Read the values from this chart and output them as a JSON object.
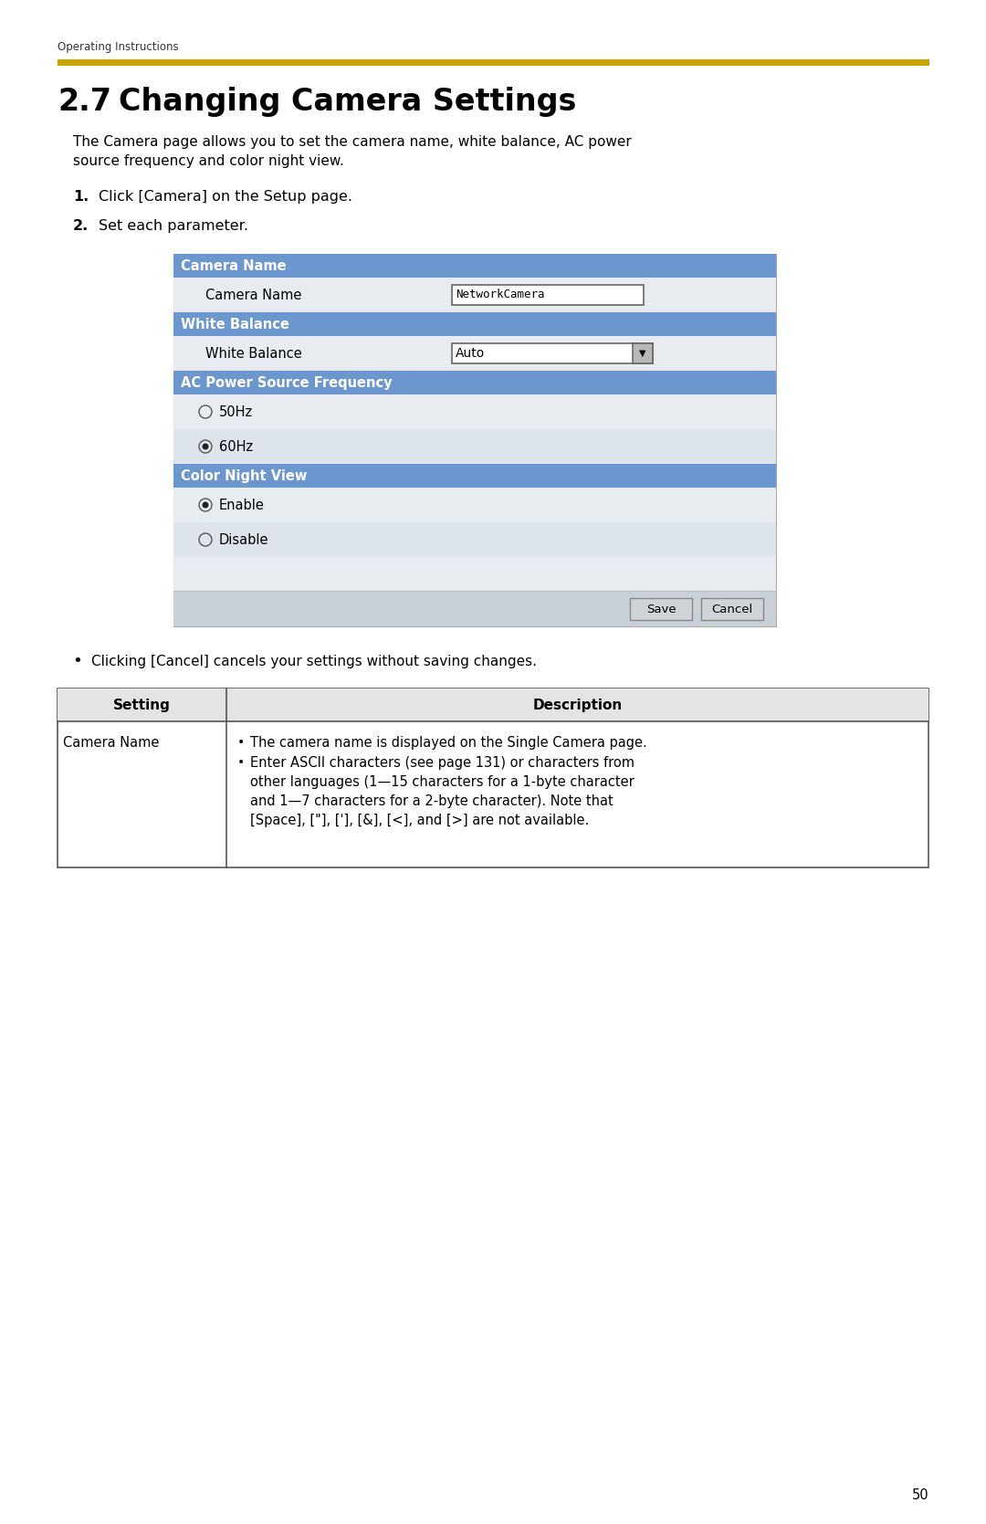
{
  "page_bg": "#ffffff",
  "header_text": "Operating Instructions",
  "header_line_color": "#c8a400",
  "title_num": "2.7",
  "title_text": "Changing Camera Settings",
  "intro_text": "The Camera page allows you to set the camera name, white balance, AC power\nsource frequency and color night view.",
  "step1": "Click [Camera] on the Setup page.",
  "step2": "Set each parameter.",
  "ui_border_color": "#aaaaaa",
  "ui_bg": "#dce4ee",
  "header_bg": "#6b96ce",
  "header_text_color": "#ffffff",
  "row_bg_light": "#e8ecf0",
  "row_bg_mid": "#dde4ec",
  "btn_area_bg": "#c8d0d8",
  "btn_bg": "#d0d4d8",
  "btn_border": "#888888",
  "bullet_text": "Clicking [Cancel] cancels your settings without saving changes.",
  "table_header_setting": "Setting",
  "table_header_description": "Description",
  "table_row_setting": "Camera Name",
  "table_row_desc1": "The camera name is displayed on the Single Camera page.",
  "table_row_desc2": "Enter ASCII characters (see page 131) or characters from\nother languages (1—15 characters for a 1-byte character\nand 1—7 characters for a 2-byte character). Note that\n[Space], [\"], ['], [&], [<], and [>] are not available.",
  "page_number": "50",
  "font_color": "#000000",
  "input_value": "NetworkCamera",
  "dropdown_value": "Auto"
}
